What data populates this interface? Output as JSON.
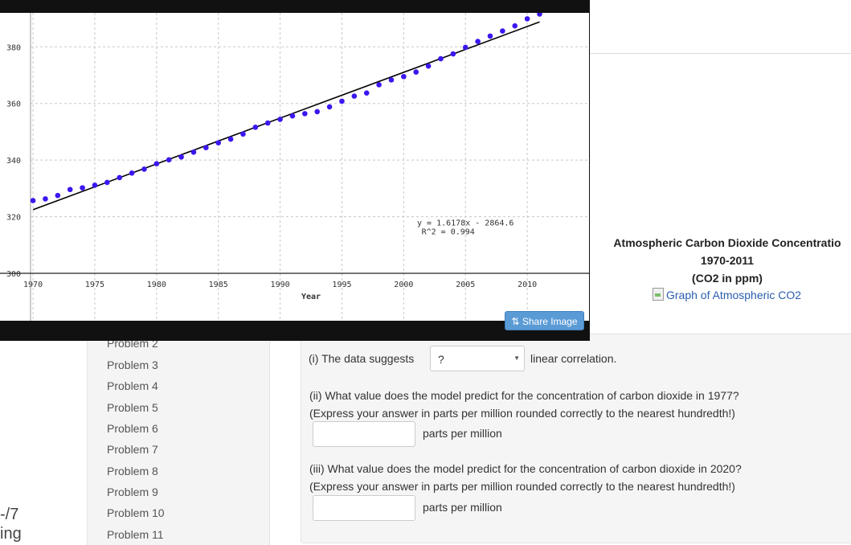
{
  "left_cut": {
    "line1": "-/7",
    "line2": "ing"
  },
  "sidebar": {
    "items": [
      {
        "label": "Problem 2"
      },
      {
        "label": "Problem 3"
      },
      {
        "label": "Problem 4"
      },
      {
        "label": "Problem 5"
      },
      {
        "label": "Problem 6"
      },
      {
        "label": "Problem 7"
      },
      {
        "label": "Problem 8"
      },
      {
        "label": "Problem 9"
      },
      {
        "label": "Problem 10"
      },
      {
        "label": "Problem 11"
      }
    ]
  },
  "graph_caption": {
    "line1": "Atmospheric Carbon Dioxide Concentratio",
    "line2": "1970-2011",
    "line3": "(CO2 in ppm)",
    "image_alt": "Graph of Atmospheric CO2"
  },
  "questions": {
    "q1_prefix": "(i) The data suggests",
    "q1_select_value": "?",
    "q1_suffix": "linear correlation.",
    "q2_line1": "(ii) What value does the model predict for the concentration of carbon dioxide in 1977?",
    "q2_line2": "(Express your answer in parts per million rounded correctly to the nearest hundredth!)",
    "q2_unit": "parts per million",
    "q3_line1": "(iii) What value does the model predict for the concentration of carbon dioxide in 2020?",
    "q3_line2": "(Express your answer in parts per million rounded correctly to the nearest hundredth!)",
    "q3_unit": "parts per million"
  },
  "popup": {
    "share_label": "Share Image"
  },
  "colors": {
    "point": "#3d16f0",
    "trend": "#000000",
    "share_button": "#5a9bd6"
  },
  "chart_data": {
    "type": "scatter",
    "xlabel": "Year",
    "ylabel": "",
    "xlim": [
      1969.8,
      2015
    ],
    "ylim": [
      300,
      392
    ],
    "x_ticks": [
      1970,
      1975,
      1980,
      1985,
      1990,
      1995,
      2000,
      2005,
      2010
    ],
    "y_ticks": [
      300,
      320,
      340,
      360,
      380
    ],
    "grid": true,
    "annotation_line1": "y = 1.6178x - 2864.6",
    "annotation_line2": "R^2 = 0.994",
    "trendline": {
      "slope": 1.6178,
      "intercept": -2864.6
    },
    "series": [
      {
        "x": [
          1970,
          1971,
          1972,
          1973,
          1974,
          1975,
          1976,
          1977,
          1978,
          1979,
          1980,
          1981,
          1982,
          1983,
          1984,
          1985,
          1986,
          1987,
          1988,
          1989,
          1990,
          1991,
          1992,
          1993,
          1994,
          1995,
          1996,
          1997,
          1998,
          1999,
          2000,
          2001,
          2002,
          2003,
          2004,
          2005,
          2006,
          2007,
          2008,
          2009,
          2010,
          2011
        ],
        "y": [
          325.7,
          326.3,
          327.5,
          329.6,
          330.2,
          331.1,
          332.1,
          333.8,
          335.4,
          336.8,
          338.7,
          340.1,
          341.1,
          342.8,
          344.4,
          346.1,
          347.4,
          349.2,
          351.6,
          353.1,
          354.4,
          355.6,
          356.4,
          357.1,
          358.8,
          360.8,
          362.6,
          363.7,
          366.6,
          368.3,
          369.5,
          371.1,
          373.2,
          375.8,
          377.5,
          379.8,
          381.9,
          383.8,
          385.6,
          387.4,
          389.9,
          391.6
        ]
      }
    ]
  }
}
